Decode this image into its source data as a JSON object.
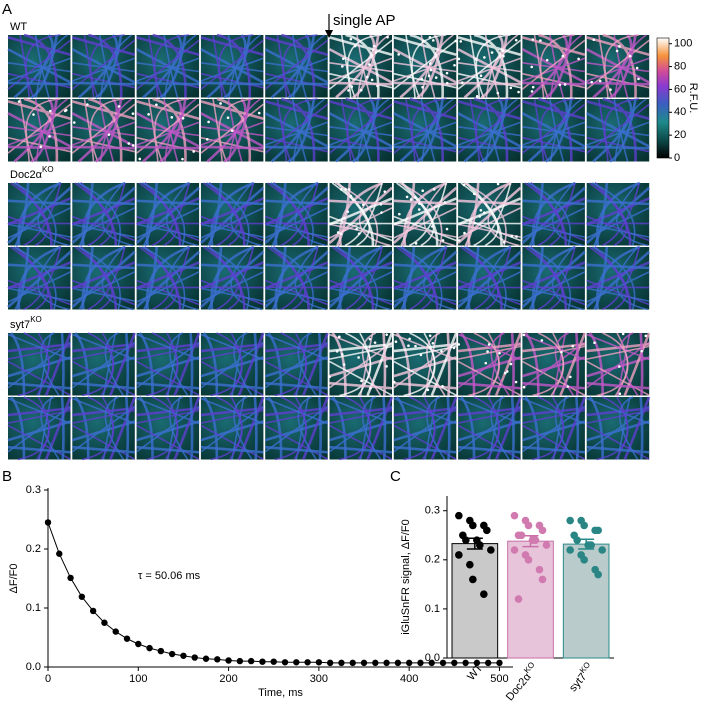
{
  "panel_letters": [
    "A",
    "B",
    "C"
  ],
  "panel_a": {
    "stimulus": "single AP",
    "groups": [
      {
        "label": "WT"
      },
      {
        "label": "Doc2α",
        "sup": "KO"
      },
      {
        "label": "syt7",
        "sup": "KO"
      }
    ],
    "colorbar": {
      "label": "R.F.U.",
      "lim": [
        0,
        105
      ],
      "ticks": [
        0,
        20,
        40,
        60,
        80,
        100
      ]
    }
  },
  "chart_data": [
    {
      "type": "scatter",
      "annotation": "τ = 50.06 ms",
      "xlabel": "Time, ms",
      "ylabel": "ΔF/F0",
      "x": [
        0,
        12.5,
        25,
        37.5,
        50,
        62.5,
        75,
        87.5,
        100,
        112.5,
        125,
        137.5,
        150,
        162.5,
        175,
        187.5,
        200,
        212.5,
        225,
        237.5,
        250,
        262.5,
        275,
        287.5,
        300,
        312.5,
        325,
        337.5,
        350,
        362.5,
        375,
        387.5,
        400,
        412.5,
        425,
        437.5,
        450,
        462.5,
        475,
        487.5,
        500
      ],
      "series": [
        {
          "color": "#000000",
          "values": [
            0.245,
            0.192,
            0.151,
            0.119,
            0.095,
            0.075,
            0.06,
            0.048,
            0.039,
            0.032,
            0.027,
            0.022,
            0.019,
            0.016,
            0.014,
            0.013,
            0.011,
            0.01,
            0.01,
            0.009,
            0.009,
            0.008,
            0.008,
            0.008,
            0.008,
            0.007,
            0.007,
            0.007,
            0.007,
            0.007,
            0.007,
            0.007,
            0.007,
            0.007,
            0.007,
            0.007,
            0.007,
            0.007,
            0.007,
            0.007,
            0.007
          ]
        }
      ],
      "xlim": [
        0,
        515
      ],
      "xticks": [
        0,
        100,
        200,
        300,
        400,
        500
      ],
      "ylim": [
        0,
        0.3
      ],
      "yticks": [
        {
          "value": 0,
          "label": "0.0"
        },
        0.1,
        0.2,
        0.3
      ]
    },
    {
      "type": "bar",
      "ylabel": "iGluSnFR signal, ΔF/F0",
      "categories": [
        "WT",
        "Doc2α",
        "syt7"
      ],
      "category_superscripts": [
        null,
        "KO",
        "KO"
      ],
      "values": [
        0.233,
        0.238,
        0.232
      ],
      "errors": [
        0.011,
        0.011,
        0.01
      ],
      "bar_colors": [
        "#c9c9c9",
        "#e8c4da",
        "#b9cbcb"
      ],
      "edge_colors": [
        "#000000",
        "#c86ea8",
        "#2a8a8a"
      ],
      "point_colors": [
        "#000000",
        "#d07ab0",
        "#2a8585"
      ],
      "points": [
        [
          0.29,
          0.28,
          0.27,
          0.27,
          0.26,
          0.25,
          0.24,
          0.24,
          0.23,
          0.22,
          0.21,
          0.19,
          0.16,
          0.13
        ],
        [
          0.29,
          0.28,
          0.27,
          0.27,
          0.26,
          0.25,
          0.25,
          0.24,
          0.24,
          0.23,
          0.22,
          0.21,
          0.2,
          0.18,
          0.16,
          0.12
        ],
        [
          0.28,
          0.28,
          0.27,
          0.26,
          0.26,
          0.25,
          0.24,
          0.23,
          0.23,
          0.22,
          0.22,
          0.21,
          0.2,
          0.18,
          0.17
        ]
      ],
      "ylim": [
        0,
        0.33
      ],
      "yticks": [
        {
          "value": 0,
          "label": "0.0"
        },
        0.1,
        0.2,
        0.3
      ]
    }
  ]
}
